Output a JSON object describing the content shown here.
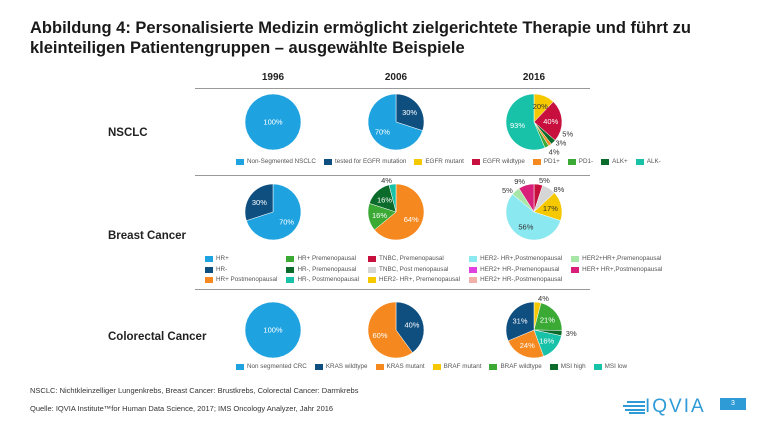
{
  "title": "Abbildung 4: Personalisierte Medizin ermöglicht zielgerichtete Therapie und führt zu kleinteiligen Patientengruppen – ausgewählte Beispiele",
  "years": [
    "1996",
    "2006",
    "2016"
  ],
  "rows": [
    "NSCLC",
    "Breast Cancer",
    "Colorectal Cancer"
  ],
  "chart_data": [
    {
      "type": "pie",
      "row": "NSCLC",
      "year": "1996",
      "slices": [
        {
          "label": "Non-Segmented NSCLC",
          "value": 100,
          "color": "#1fa3e0"
        }
      ]
    },
    {
      "type": "pie",
      "row": "NSCLC",
      "year": "2006",
      "slices": [
        {
          "label": "tested for EGFR mutation",
          "value": 30,
          "color": "#0f4f80"
        },
        {
          "label": "Non-Segmented NSCLC",
          "value": 70,
          "color": "#1fa3e0"
        }
      ]
    },
    {
      "type": "pie",
      "row": "NSCLC",
      "year": "2016",
      "slices": [
        {
          "label": "EGFR mutant",
          "value": 20,
          "color": "#f5c800"
        },
        {
          "label": "EGFR wildtype",
          "value": 40,
          "color": "#c8103e"
        },
        {
          "label": "ALK+",
          "value": 5,
          "color": "#0b6b2a"
        },
        {
          "label": "PD1+",
          "value": 3,
          "color": "#f5891f"
        },
        {
          "label": "PD1-",
          "value": 4,
          "color": "#3aaa35"
        },
        {
          "label": "ALK-",
          "value": 93,
          "color": "#18c2a8"
        }
      ]
    },
    {
      "type": "pie",
      "row": "Breast Cancer",
      "year": "1996",
      "slices": [
        {
          "label": "HR+",
          "value": 70,
          "color": "#1fa3e0"
        },
        {
          "label": "HR-",
          "value": 30,
          "color": "#0f4f80"
        }
      ]
    },
    {
      "type": "pie",
      "row": "Breast Cancer",
      "year": "2006",
      "slices": [
        {
          "label": "HR+ Postmenopausal",
          "value": 64,
          "color": "#f5891f"
        },
        {
          "label": "HR+ Premenopausal",
          "value": 16,
          "color": "#3aaa35"
        },
        {
          "label": "HR-, Premenopausal",
          "value": 16,
          "color": "#0b6b2a"
        },
        {
          "label": "HR-, Postmenopausal",
          "value": 4,
          "color": "#18c2a8"
        }
      ]
    },
    {
      "type": "pie",
      "row": "Breast Cancer",
      "year": "2016",
      "slices": [
        {
          "label": "TNBC, Premenopausal",
          "value": 5,
          "color": "#c8103e"
        },
        {
          "label": "TNBC, Post menopausal",
          "value": 8,
          "color": "#d6d6d6"
        },
        {
          "label": "HER2- HR+, Premenopausal",
          "value": 17,
          "color": "#f5c800"
        },
        {
          "label": "HER2- HR+,Postmenopausal",
          "value": 56,
          "color": "#8ae8f0"
        },
        {
          "label": "HER2+HR+,Premenopausal",
          "value": 5,
          "color": "#a8e6a8"
        },
        {
          "label": "HER+ HR+,Postmenopausal",
          "value": 9,
          "color": "#d8207a"
        }
      ]
    },
    {
      "type": "pie",
      "row": "Colorectal Cancer",
      "year": "1996",
      "slices": [
        {
          "label": "Non segmented CRC",
          "value": 100,
          "color": "#1fa3e0"
        }
      ]
    },
    {
      "type": "pie",
      "row": "Colorectal Cancer",
      "year": "2006",
      "slices": [
        {
          "label": "KRAS wildtype",
          "value": 40,
          "color": "#0f4f80"
        },
        {
          "label": "KRAS mutant",
          "value": 60,
          "color": "#f5891f"
        }
      ]
    },
    {
      "type": "pie",
      "row": "Colorectal Cancer",
      "year": "2016",
      "slices": [
        {
          "label": "BRAF mutant",
          "value": 4,
          "color": "#f5c800"
        },
        {
          "label": "BRAF wildtype",
          "value": 21,
          "color": "#3aaa35"
        },
        {
          "label": "MSI high",
          "value": 3,
          "color": "#0b6b2a"
        },
        {
          "label": "MSI low",
          "value": 16,
          "color": "#18c2a8"
        },
        {
          "label": "KRAS mutant",
          "value": 24,
          "color": "#f5891f"
        },
        {
          "label": "KRAS wildtype",
          "value": 31,
          "color": "#0f4f80"
        }
      ]
    }
  ],
  "legends": {
    "nsclc": [
      {
        "label": "Non-Segmented NSCLC",
        "color": "#1fa3e0"
      },
      {
        "label": "tested for EGFR mutation",
        "color": "#0f4f80"
      },
      {
        "label": "EGFR mutant",
        "color": "#f5c800"
      },
      {
        "label": "EGFR wildtype",
        "color": "#c8103e"
      },
      {
        "label": "PD1+",
        "color": "#f5891f"
      },
      {
        "label": "PD1-",
        "color": "#3aaa35"
      },
      {
        "label": "ALK+",
        "color": "#0b6b2a"
      },
      {
        "label": "ALK-",
        "color": "#18c2a8"
      }
    ],
    "breast": [
      {
        "label": "HR+",
        "color": "#1fa3e0"
      },
      {
        "label": "HR-",
        "color": "#0f4f80"
      },
      {
        "label": "HR+ Postmenopausal",
        "color": "#f5891f"
      },
      {
        "label": "HR+ Premenopausal",
        "color": "#3aaa35"
      },
      {
        "label": "HR-, Premenopausal",
        "color": "#0b6b2a"
      },
      {
        "label": "HR-, Postmenopausal",
        "color": "#18c2a8"
      },
      {
        "label": "TNBC, Premenopausal",
        "color": "#c8103e"
      },
      {
        "label": "TNBC, Post menopausal",
        "color": "#d6d6d6"
      },
      {
        "label": "HER2- HR+, Premenopausal",
        "color": "#f5c800"
      },
      {
        "label": "HER2- HR+,Postmenopausal",
        "color": "#8ae8f0"
      },
      {
        "label": "HER2+ HR-,Premenopausal",
        "color": "#e040e0"
      },
      {
        "label": "HER2+ HR-,Postmenopausal",
        "color": "#f0b0a8"
      },
      {
        "label": "HER2+HR+,Premenopausal",
        "color": "#a8e6a8"
      },
      {
        "label": "HER+ HR+,Postmenopausal",
        "color": "#d8207a"
      }
    ],
    "crc": [
      {
        "label": "Non segmented CRC",
        "color": "#1fa3e0"
      },
      {
        "label": "KRAS wildtype",
        "color": "#0f4f80"
      },
      {
        "label": "KRAS mutant",
        "color": "#f5891f"
      },
      {
        "label": "BRAF mutant",
        "color": "#f5c800"
      },
      {
        "label": "BRAF wildtype",
        "color": "#3aaa35"
      },
      {
        "label": "MSI high",
        "color": "#0b6b2a"
      },
      {
        "label": "MSI low",
        "color": "#18c2a8"
      }
    ]
  },
  "footer": {
    "abbrev": "NSCLC: Nichtkleinzelliger Lungenkrebs, Breast Cancer: Brustkrebs, Colorectal Cancer: Darmkrebs",
    "source": "Quelle: IQVIA Institute™for Human Data Science, 2017; IMS Oncology Analyzer, Jahr 2016",
    "logo": "IQVIA",
    "page": "3"
  }
}
